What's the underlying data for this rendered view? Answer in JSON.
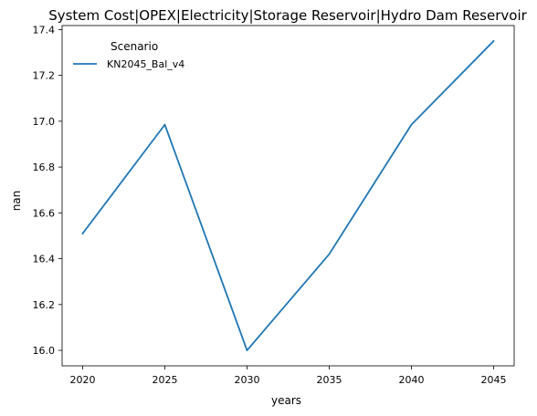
{
  "chart_data": {
    "type": "line",
    "title": "System Cost|OPEX|Electricity|Storage Reservoir|Hydro Dam Reservoir",
    "xlabel": "years",
    "ylabel": "nan",
    "x": [
      2020,
      2025,
      2030,
      2035,
      2040,
      2045
    ],
    "series": [
      {
        "name": "KN2045_Bal_v4",
        "color": "#1f77b4",
        "values": [
          16.51,
          16.985,
          16.0,
          16.42,
          16.985,
          17.35
        ]
      }
    ],
    "xticks": [
      2020,
      2025,
      2030,
      2035,
      2040,
      2045
    ],
    "yticks": [
      16.0,
      16.2,
      16.4,
      16.6,
      16.8,
      17.0,
      17.2,
      17.4
    ],
    "ytick_labels": [
      "16.0",
      "16.2",
      "16.4",
      "16.6",
      "16.8",
      "17.0",
      "17.2",
      "17.4"
    ],
    "xlim": [
      2018.75,
      2046.25
    ],
    "ylim": [
      15.9325,
      17.4175
    ],
    "grid": false,
    "legend": {
      "title": "Scenario",
      "placement": "upper-left"
    }
  }
}
